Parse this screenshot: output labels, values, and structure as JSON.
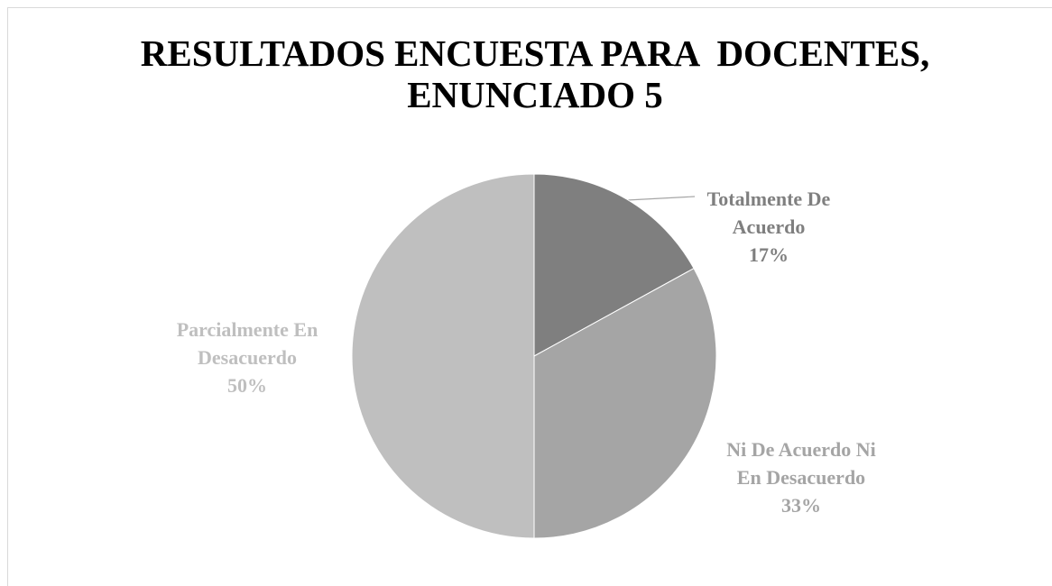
{
  "chart_data": {
    "type": "pie",
    "title": "RESULTADOS ENCUESTA PARA  DOCENTES, ENUNCIADO 5",
    "categories": [
      "Totalmente De Acuerdo",
      "Ni De Acuerdo Ni En Desacuerdo",
      "Parcialmente En Desacuerdo"
    ],
    "values": [
      17,
      33,
      50
    ],
    "value_labels": [
      "17%",
      "33%",
      "50%"
    ],
    "colors": [
      "#7f7f7f",
      "#a5a5a5",
      "#bfbfbf"
    ]
  }
}
